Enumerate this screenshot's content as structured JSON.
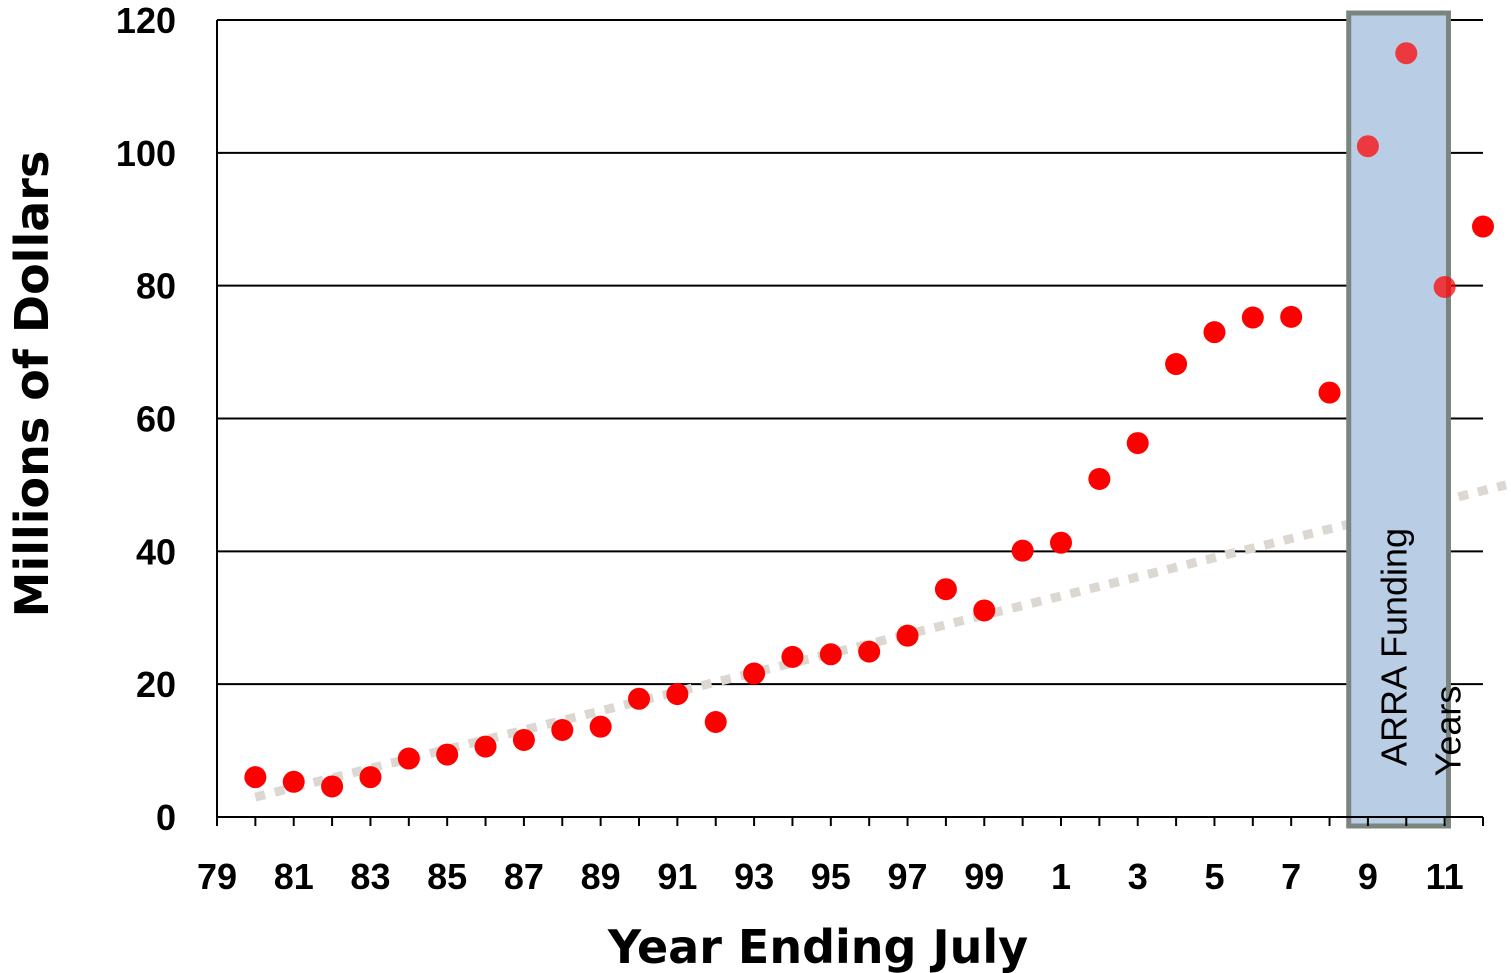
{
  "chart_data": {
    "type": "scatter",
    "title": "",
    "xlabel": "Year Ending July",
    "ylabel": "Millions of Dollars",
    "xlim": [
      1979,
      2012
    ],
    "ylim": [
      0,
      120
    ],
    "y_ticks": [
      0,
      20,
      40,
      60,
      80,
      100,
      120
    ],
    "x_ticks": [
      {
        "year": 1979,
        "label": "79"
      },
      {
        "year": 1981,
        "label": "81"
      },
      {
        "year": 1983,
        "label": "83"
      },
      {
        "year": 1985,
        "label": "85"
      },
      {
        "year": 1987,
        "label": "87"
      },
      {
        "year": 1989,
        "label": "89"
      },
      {
        "year": 1991,
        "label": "91"
      },
      {
        "year": 1993,
        "label": "93"
      },
      {
        "year": 1995,
        "label": "95"
      },
      {
        "year": 1997,
        "label": "97"
      },
      {
        "year": 1999,
        "label": "99"
      },
      {
        "year": 2001,
        "label": "1"
      },
      {
        "year": 2003,
        "label": "3"
      },
      {
        "year": 2005,
        "label": "5"
      },
      {
        "year": 2007,
        "label": "7"
      },
      {
        "year": 2009,
        "label": "9"
      },
      {
        "year": 2011,
        "label": "11"
      }
    ],
    "grid": "horizontal",
    "series": [
      {
        "color": "#ff0000",
        "points": [
          [
            1980,
            6.0
          ],
          [
            1981,
            5.3
          ],
          [
            1982,
            4.6
          ],
          [
            1983,
            6.0
          ],
          [
            1984,
            8.8
          ],
          [
            1985,
            9.4
          ],
          [
            1986,
            10.6
          ],
          [
            1987,
            11.6
          ],
          [
            1988,
            13.1
          ],
          [
            1989,
            13.6
          ],
          [
            1990,
            17.8
          ],
          [
            1991,
            18.5
          ],
          [
            1992,
            14.3
          ],
          [
            1993,
            21.6
          ],
          [
            1994,
            24.1
          ],
          [
            1995,
            24.5
          ],
          [
            1996,
            24.9
          ],
          [
            1997,
            27.3
          ],
          [
            1998,
            34.3
          ],
          [
            1999,
            31.1
          ],
          [
            2000,
            40.1
          ],
          [
            2001,
            41.3
          ],
          [
            2002,
            50.9
          ],
          [
            2003,
            56.3
          ],
          [
            2004,
            68.2
          ],
          [
            2005,
            73.0
          ],
          [
            2006,
            75.2
          ],
          [
            2007,
            75.3
          ],
          [
            2008,
            63.9
          ],
          [
            2009,
            101.0
          ],
          [
            2010,
            115.0
          ],
          [
            2011,
            79.8
          ],
          [
            2012,
            88.9
          ]
        ]
      }
    ],
    "trendline": {
      "style": "dotted",
      "color": "#dcd7d0",
      "points": [
        [
          1980,
          3.0
        ],
        [
          2012.6,
          50.0
        ]
      ]
    },
    "shaded_region": {
      "x_range": [
        2008.5,
        2011.1
      ],
      "fill": "#b9cde4",
      "border": "#7a8580",
      "label_line1": "ARRA Funding",
      "label_line2": "Years"
    }
  }
}
